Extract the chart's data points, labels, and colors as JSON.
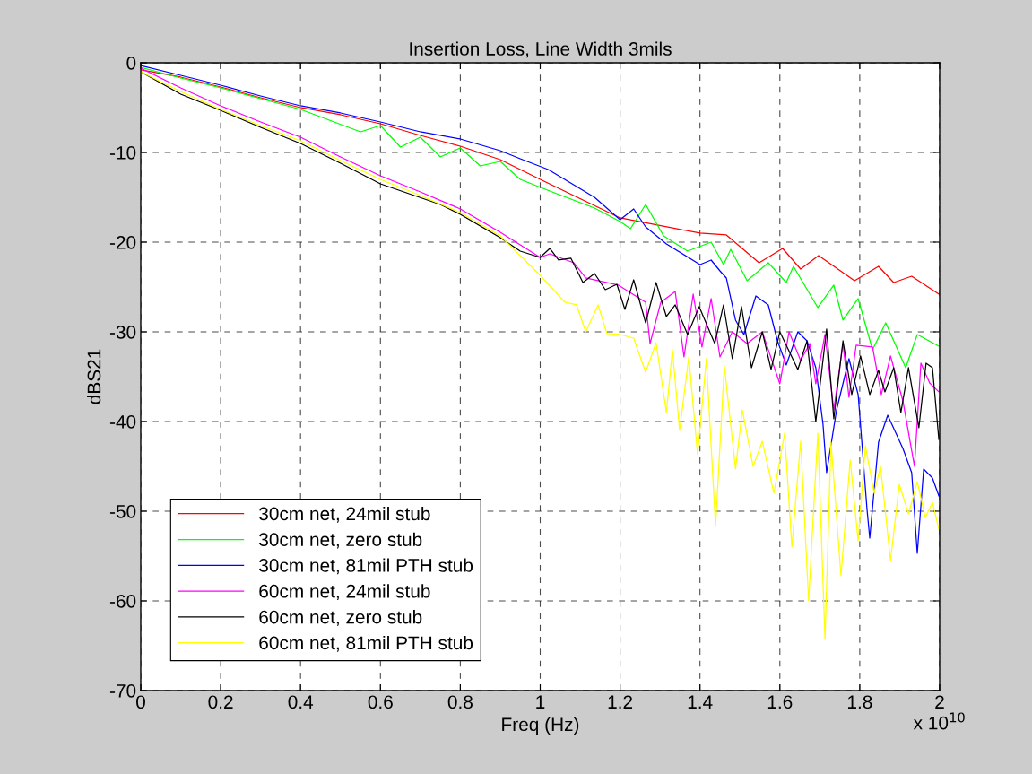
{
  "chart_data": {
    "type": "line",
    "title": "Insertion Loss, Line Width 3mils",
    "xlabel": "Freq (Hz)",
    "ylabel": "dBS21",
    "xlim": [
      0,
      2
    ],
    "ylim": [
      -70,
      0
    ],
    "xticks": [
      0,
      0.2,
      0.4,
      0.6,
      0.8,
      1,
      1.2,
      1.4,
      1.6,
      1.8,
      2
    ],
    "yticks": [
      -70,
      -60,
      -50,
      -40,
      -30,
      -20,
      -10,
      0
    ],
    "grid": true,
    "legend": "bottom left",
    "line_style": "solid",
    "marker": "none",
    "annotations": [
      "x 10$^{10}$"
    ],
    "series": [
      {
        "name": "30cm net, 24mil stub",
        "color": "#ff0000",
        "x": [
          0,
          0.1,
          0.2,
          0.3,
          0.4,
          0.5,
          0.6,
          0.7,
          0.8,
          0.9,
          1.0,
          1.2,
          1.4,
          1.466,
          1.548,
          1.607,
          1.652,
          1.697,
          1.787,
          1.847,
          1.885,
          1.93,
          1.998
        ],
        "values": [
          -0.8,
          -1.6,
          -2.7,
          -3.9,
          -5,
          -5.8,
          -6.8,
          -8.1,
          -9.3,
          -10.8,
          -13,
          -17.3,
          -19,
          -19.2,
          -22.3,
          -20.7,
          -23,
          -21.5,
          -24.3,
          -22.7,
          -24.5,
          -23.8,
          -25.8
        ]
      },
      {
        "name": "30cm net, zero stub",
        "color": "#00ff00",
        "x": [
          0,
          0.1,
          0.2,
          0.3,
          0.4,
          0.55,
          0.6,
          0.65,
          0.7,
          0.75,
          0.8,
          0.85,
          0.9,
          0.95,
          1.024,
          1.136,
          1.2,
          1.226,
          1.264,
          1.309,
          1.369,
          1.428,
          1.459,
          1.477,
          1.518,
          1.571,
          1.616,
          1.634,
          1.695,
          1.735,
          1.758,
          1.796,
          1.832,
          1.865,
          1.915,
          1.944,
          1.998
        ],
        "values": [
          -0.5,
          -1.7,
          -2.8,
          -4,
          -5.2,
          -7.7,
          -7,
          -9.4,
          -8.3,
          -10.5,
          -9.5,
          -11.5,
          -11,
          -13,
          -14.3,
          -16.2,
          -17.7,
          -18.5,
          -15.8,
          -19.3,
          -21,
          -20,
          -22.5,
          -20.8,
          -24.3,
          -22.3,
          -24.5,
          -22.7,
          -27.3,
          -24.8,
          -28.7,
          -26.3,
          -32,
          -29,
          -34,
          -30.3,
          -31.6
        ]
      },
      {
        "name": "30cm net, 81mil PTH stub",
        "color": "#0000ff",
        "x": [
          0,
          0.1,
          0.2,
          0.3,
          0.4,
          0.5,
          0.6,
          0.7,
          0.8,
          0.9,
          0.95,
          1.02,
          1.136,
          1.2,
          1.234,
          1.264,
          1.316,
          1.4,
          1.428,
          1.45,
          1.466,
          1.489,
          1.51,
          1.54,
          1.571,
          1.594,
          1.616,
          1.645,
          1.668,
          1.69,
          1.708,
          1.717,
          1.742,
          1.773,
          1.796,
          1.818,
          1.825,
          1.847,
          1.87,
          1.908,
          1.93,
          1.944,
          1.96,
          1.982,
          1.998
        ],
        "values": [
          -0.3,
          -1.4,
          -2.5,
          -3.7,
          -4.8,
          -5.6,
          -6.6,
          -7.7,
          -8.5,
          -9.8,
          -10.7,
          -11.9,
          -15,
          -17.5,
          -16.3,
          -18.3,
          -20.2,
          -22.5,
          -22,
          -23.2,
          -24,
          -28.7,
          -30.3,
          -26,
          -27,
          -31,
          -33.7,
          -30,
          -31,
          -34,
          -40.3,
          -45.7,
          -38.7,
          -33,
          -37,
          -49.7,
          -53,
          -42.3,
          -39.3,
          -43,
          -45.7,
          -54.7,
          -45.3,
          -46.3,
          -48.3
        ]
      },
      {
        "name": "60cm net, 24mil stub",
        "color": "#ff00ff",
        "x": [
          0,
          0.1,
          0.2,
          0.3,
          0.4,
          0.5,
          0.6,
          0.7,
          0.8,
          0.9,
          1.0,
          1.024,
          1.084,
          1.114,
          1.196,
          1.264,
          1.275,
          1.302,
          1.338,
          1.36,
          1.383,
          1.405,
          1.428,
          1.45,
          1.481,
          1.518,
          1.556,
          1.6,
          1.623,
          1.652,
          1.675,
          1.69,
          1.713,
          1.735,
          1.758,
          1.773,
          1.791,
          1.832,
          1.854,
          1.877,
          1.908,
          1.937,
          1.953,
          1.975,
          1.998
        ],
        "values": [
          -0.6,
          -2.8,
          -4.8,
          -6.6,
          -8.3,
          -10.5,
          -12.6,
          -14.4,
          -16.3,
          -18.9,
          -21.7,
          -21.3,
          -22.3,
          -24,
          -24.8,
          -26.7,
          -31.3,
          -26.7,
          -25.5,
          -32.8,
          -25.8,
          -31.7,
          -26.3,
          -32.8,
          -30,
          -31.3,
          -30,
          -35.8,
          -30,
          -33.2,
          -31.3,
          -35.8,
          -30.3,
          -38.7,
          -31.3,
          -37.3,
          -31.5,
          -31.7,
          -37,
          -32.7,
          -37.7,
          -45,
          -33.5,
          -35.7,
          -36.7
        ]
      },
      {
        "name": "60cm net, zero stub",
        "color": "#000000",
        "x": [
          0,
          0.1,
          0.2,
          0.3,
          0.4,
          0.5,
          0.6,
          0.75,
          0.8,
          0.9,
          0.95,
          1.0,
          1.024,
          1.046,
          1.077,
          1.107,
          1.136,
          1.163,
          1.192,
          1.212,
          1.234,
          1.264,
          1.29,
          1.316,
          1.338,
          1.369,
          1.398,
          1.437,
          1.459,
          1.481,
          1.504,
          1.529,
          1.556,
          1.578,
          1.6,
          1.645,
          1.668,
          1.69,
          1.717,
          1.735,
          1.758,
          1.78,
          1.802,
          1.825,
          1.847,
          1.863,
          1.885,
          1.903,
          1.922,
          1.948,
          1.966,
          1.982,
          1.998
        ],
        "values": [
          -1,
          -3.5,
          -5.3,
          -7.2,
          -9,
          -11.2,
          -13.5,
          -15.8,
          -16.9,
          -19.5,
          -21,
          -21.7,
          -20.7,
          -22,
          -21.8,
          -24.5,
          -23.5,
          -25.3,
          -24.7,
          -27.5,
          -24.2,
          -29,
          -24.5,
          -28.3,
          -27,
          -30.3,
          -27.2,
          -31.3,
          -27,
          -33,
          -27.2,
          -34,
          -30,
          -34.2,
          -30,
          -34.2,
          -31,
          -40,
          -29.7,
          -39.7,
          -31,
          -37,
          -32.7,
          -37,
          -34.3,
          -36.7,
          -34,
          -39,
          -34,
          -40.7,
          -33.5,
          -34,
          -42
        ]
      },
      {
        "name": "60cm net, 81mil PTH stub",
        "color": "#ffff00",
        "x": [
          0,
          0.1,
          0.2,
          0.3,
          0.4,
          0.5,
          0.6,
          0.7,
          0.8,
          0.9,
          0.95,
          1.0,
          1.062,
          1.091,
          1.114,
          1.145,
          1.167,
          1.2,
          1.234,
          1.264,
          1.29,
          1.316,
          1.331,
          1.349,
          1.372,
          1.394,
          1.416,
          1.439,
          1.461,
          1.489,
          1.506,
          1.533,
          1.556,
          1.585,
          1.612,
          1.63,
          1.652,
          1.672,
          1.695,
          1.713,
          1.728,
          1.753,
          1.776,
          1.796,
          1.814,
          1.836,
          1.852,
          1.877,
          1.899,
          1.922,
          1.944,
          1.964,
          1.982,
          1.998
        ],
        "values": [
          -1,
          -3.2,
          -5.2,
          -7,
          -8.7,
          -10.9,
          -13,
          -14.8,
          -16.7,
          -19.3,
          -21.5,
          -23.7,
          -26.7,
          -27,
          -30,
          -27,
          -30.2,
          -30.3,
          -30.7,
          -34.5,
          -31.2,
          -39,
          -32,
          -41,
          -32.8,
          -43.7,
          -33,
          -51.7,
          -33.8,
          -45.3,
          -38.7,
          -45,
          -42.2,
          -48,
          -41.3,
          -54,
          -42.2,
          -60,
          -41.3,
          -64.3,
          -42.3,
          -57.2,
          -44.3,
          -53.3,
          -42.7,
          -48,
          -45,
          -55.5,
          -47,
          -50.3,
          -46.7,
          -50.7,
          -49,
          -52
        ]
      }
    ]
  }
}
